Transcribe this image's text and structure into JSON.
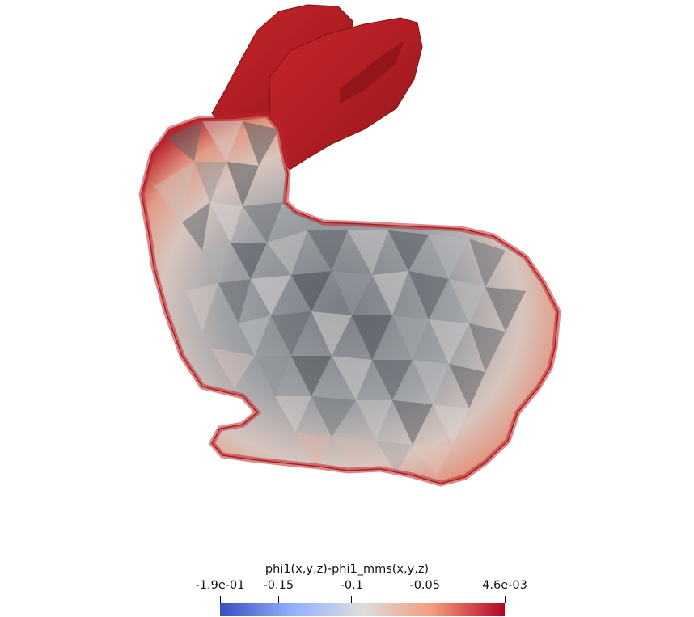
{
  "scalar_bar": {
    "title": "phi1(x,y,z)-phi1_mms(x,y,z)",
    "range": [
      -0.19,
      0.0046
    ],
    "colormap": [
      "#3b4cc0",
      "#8db0fe",
      "#dddddd",
      "#f49a7b",
      "#b40426"
    ],
    "ticks": [
      {
        "label": "-1.9e-01",
        "value": -0.19
      },
      {
        "label": "-0.15",
        "value": -0.15
      },
      {
        "label": "-0.1",
        "value": -0.1
      },
      {
        "label": "-0.05",
        "value": -0.05
      },
      {
        "label": "4.6e-03",
        "value": 0.0046
      }
    ]
  },
  "colors": {
    "mesh_red": "#b41c24",
    "mesh_dark_red": "#8c1418",
    "mesh_gray": "#5e6268",
    "mesh_light": "#d8d4d2",
    "mesh_salmon": "#e9a490"
  }
}
